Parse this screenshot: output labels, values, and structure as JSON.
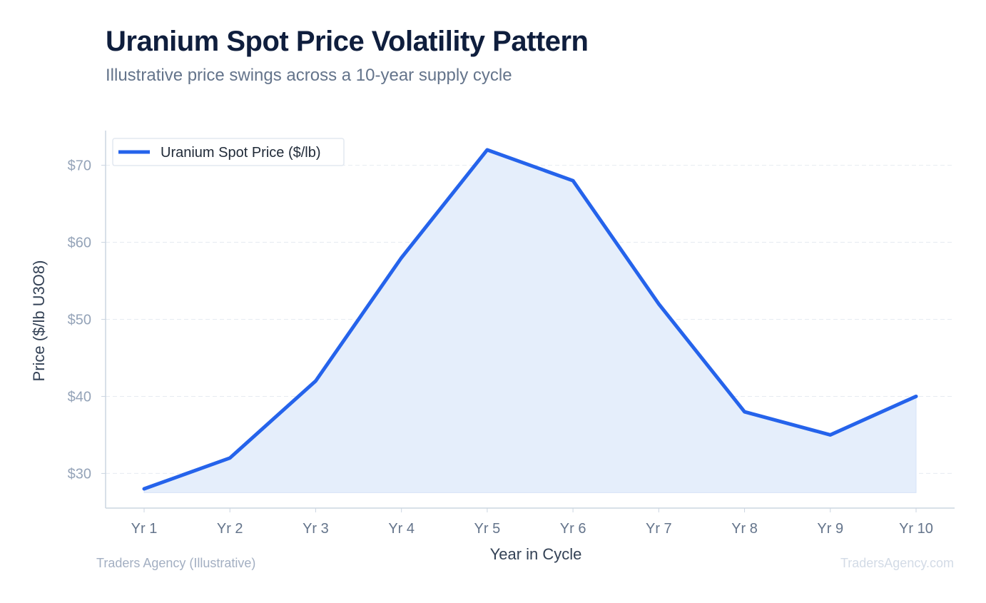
{
  "header": {
    "title": "Uranium Spot Price Volatility Pattern",
    "subtitle": "Illustrative price swings across a 10-year supply cycle"
  },
  "footer": {
    "source": "Traders Agency (Illustrative)",
    "watermark": "TradersAgency.com"
  },
  "chart_data": {
    "type": "line",
    "categories": [
      "Yr 1",
      "Yr 2",
      "Yr 3",
      "Yr 4",
      "Yr 5",
      "Yr 6",
      "Yr 7",
      "Yr 8",
      "Yr 9",
      "Yr 10"
    ],
    "series": [
      {
        "name": "Uranium Spot Price ($/lb)",
        "values": [
          28,
          32,
          42,
          58,
          72,
          68,
          52,
          38,
          35,
          40
        ],
        "color": "#2563eb",
        "fill": "#e5eefb"
      }
    ],
    "xlabel": "Year in Cycle",
    "ylabel": "Price ($/lb U3O8)",
    "ylim": [
      25.5,
      74.5
    ],
    "yticks": [
      30,
      40,
      50,
      60,
      70
    ],
    "ytick_labels": [
      "$30",
      "$40",
      "$50",
      "$60",
      "$70"
    ],
    "fill_baseline": 27.5,
    "grid": "horizontal dashed",
    "legend": "top-left"
  }
}
